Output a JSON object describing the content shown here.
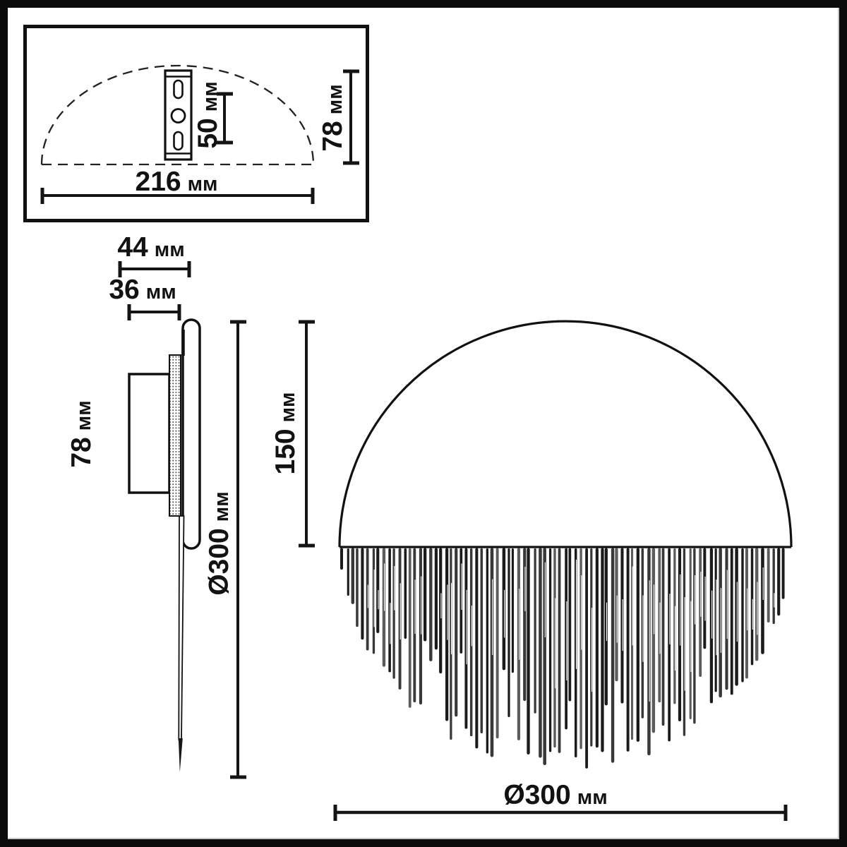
{
  "unit": "мм",
  "top_view": {
    "slot_spacing": {
      "value": "50",
      "unit": "мм"
    },
    "depth": {
      "value": "78",
      "unit": "мм"
    },
    "width": {
      "value": "216",
      "unit": "мм"
    }
  },
  "side_view": {
    "total_depth": {
      "value": "44",
      "unit": "мм"
    },
    "body_depth": {
      "value": "36",
      "unit": "мм"
    },
    "driver_height": {
      "value": "78",
      "unit": "мм"
    },
    "diameter": {
      "value": "Ø300",
      "unit": "мм"
    },
    "top_to_middle": {
      "value": "150",
      "unit": "мм"
    }
  },
  "front_view": {
    "diameter": {
      "value": "Ø300",
      "unit": "мм"
    }
  },
  "colors": {
    "line": "#141414",
    "background": "#ffffff"
  }
}
